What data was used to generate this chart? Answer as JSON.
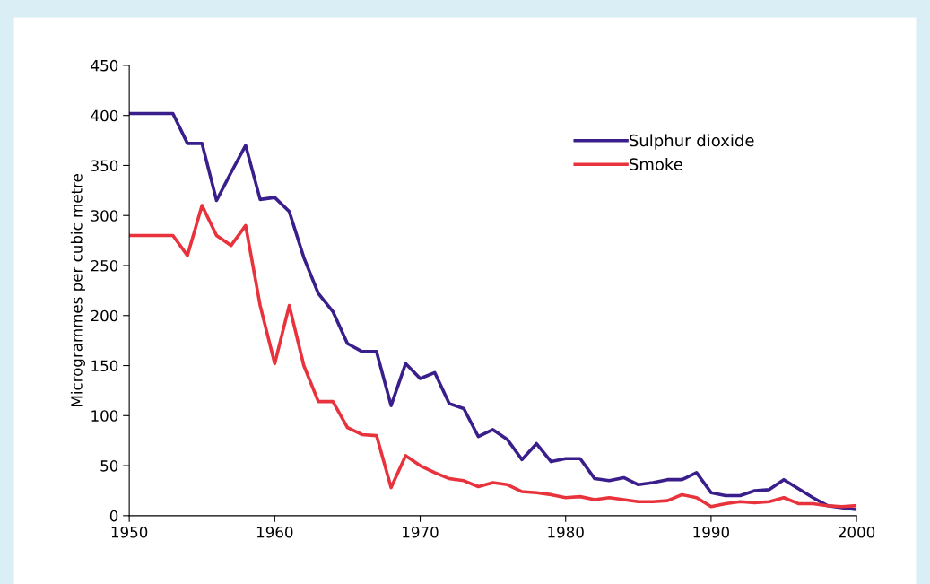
{
  "chart_data": {
    "type": "line",
    "ylabel": "Microgrammes per cubic metre",
    "xlim": [
      1950,
      2000
    ],
    "xticks": [
      1950,
      1960,
      1970,
      1980,
      1990,
      2000
    ],
    "ylim": [
      0,
      450
    ],
    "yticks": [
      0,
      50,
      100,
      150,
      200,
      250,
      300,
      350,
      400,
      450
    ],
    "grid": false,
    "legend": "top right",
    "marker": "none",
    "line_style": "solid",
    "x": [
      1950,
      1951,
      1952,
      1953,
      1954,
      1955,
      1956,
      1957,
      1958,
      1959,
      1960,
      1961,
      1962,
      1963,
      1964,
      1965,
      1966,
      1967,
      1968,
      1969,
      1970,
      1971,
      1972,
      1973,
      1974,
      1975,
      1976,
      1977,
      1978,
      1979,
      1980,
      1981,
      1982,
      1983,
      1984,
      1985,
      1986,
      1987,
      1988,
      1989,
      1990,
      1991,
      1992,
      1993,
      1994,
      1995,
      1996,
      1997,
      1998,
      1999,
      2000
    ],
    "series": [
      {
        "name": "Sulphur dioxide",
        "color": "#3a1f8c",
        "values": [
          402,
          402,
          402,
          402,
          372,
          372,
          315,
          343,
          370,
          316,
          318,
          304,
          258,
          222,
          204,
          172,
          164,
          164,
          110,
          152,
          137,
          143,
          112,
          107,
          79,
          86,
          76,
          56,
          72,
          54,
          57,
          57,
          37,
          35,
          38,
          31,
          33,
          36,
          36,
          43,
          23,
          20,
          20,
          25,
          26,
          36,
          27,
          18,
          10,
          8,
          6
        ]
      },
      {
        "name": "Smoke",
        "color": "#e8323c",
        "values": [
          280,
          280,
          280,
          280,
          260,
          310,
          280,
          270,
          290,
          210,
          152,
          210,
          150,
          114,
          114,
          88,
          81,
          80,
          28,
          60,
          50,
          43,
          37,
          35,
          29,
          33,
          31,
          24,
          23,
          21,
          18,
          19,
          16,
          18,
          16,
          14,
          14,
          15,
          21,
          18,
          9,
          12,
          14,
          13,
          14,
          18,
          12,
          12,
          10,
          9,
          10
        ]
      }
    ]
  }
}
